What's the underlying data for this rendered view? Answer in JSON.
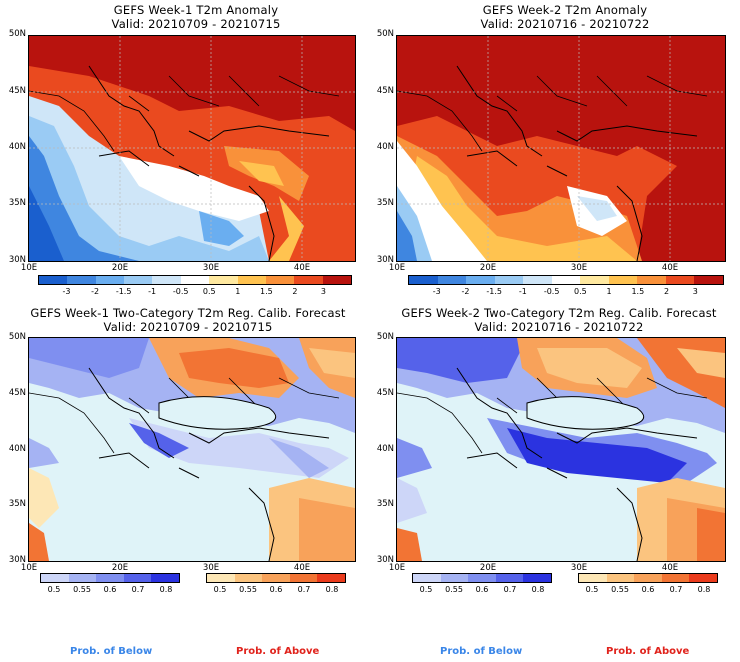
{
  "panels": [
    {
      "title": "GEFS Week-1 T2m Anomaly",
      "valid": "Valid: 20210709 - 20210715"
    },
    {
      "title": "GEFS Week-2 T2m Anomaly",
      "valid": "Valid: 20210716 - 20210722"
    },
    {
      "title": "GEFS Week-1 Two-Category T2m Reg. Calib. Forecast",
      "valid": "Valid: 20210709 - 20210715"
    },
    {
      "title": "GEFS Week-2 Two-Category T2m Reg. Calib. Forecast",
      "valid": "Valid: 20210716 - 20210722"
    }
  ],
  "lat_labels": [
    "50N",
    "45N",
    "40N",
    "35N",
    "30N"
  ],
  "lon_labels": [
    "10E",
    "20E",
    "30E",
    "40E"
  ],
  "anomaly_scale": {
    "labels": [
      "-3",
      "-2",
      "-1.5",
      "-1",
      "-0.5",
      "0.5",
      "1",
      "1.5",
      "2",
      "3"
    ],
    "colors": [
      "#1a5fce",
      "#3f86e0",
      "#6aaef0",
      "#9acbf4",
      "#cfe6f8",
      "#ffffff",
      "#ffe9a0",
      "#ffc350",
      "#f9913a",
      "#ea4a1f",
      "#b8130e"
    ]
  },
  "prob_scale": {
    "below_labels": [
      "0.5",
      "0.55",
      "0.6",
      "0.7",
      "0.8"
    ],
    "above_labels": [
      "0.5",
      "0.55",
      "0.6",
      "0.7",
      "0.8"
    ],
    "below_colors": [
      "#cdd6f8",
      "#a5b3f3",
      "#7f8ff0",
      "#5562ea",
      "#2b33e0"
    ],
    "above_colors": [
      "#fde7b6",
      "#fbc47f",
      "#f8a25a",
      "#f27434",
      "#ea3b1c"
    ]
  },
  "prob_below_label": "Prob. of Below",
  "prob_above_label": "Prob. of Above",
  "colors": {
    "below_text": "#3a86e8",
    "above_text": "#e0231c",
    "sea": "#dff3f8"
  }
}
